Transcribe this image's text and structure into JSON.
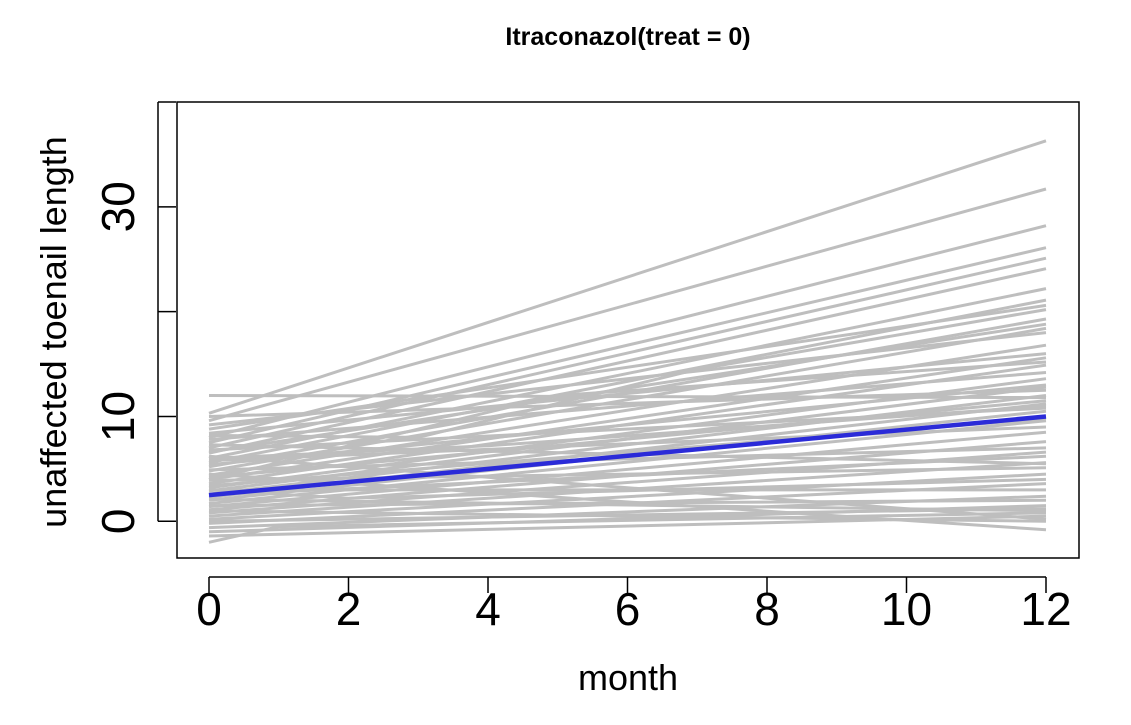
{
  "chart_data": {
    "type": "line",
    "title": "Itraconazol(treat = 0)",
    "xlabel": "month",
    "ylabel": "unaffected toenail length",
    "xlim": [
      0,
      12
    ],
    "ylim": [
      -3.5,
      40
    ],
    "x_ticks": [
      0,
      2,
      4,
      6,
      8,
      10,
      12
    ],
    "y_ticks": [
      0,
      10,
      20,
      30,
      40
    ],
    "y_tick_labels": [
      "0",
      "10",
      "",
      "30",
      ""
    ],
    "x_tick_labels": [
      "0",
      "2",
      "4",
      "6",
      "8",
      "10",
      "12"
    ],
    "colors": {
      "individual": "#bebebe",
      "mean": "#2b2bd8",
      "axis": "#000000"
    },
    "individual_series": [
      {
        "x": [
          0,
          12
        ],
        "y": [
          12.0,
          11.8
        ]
      },
      {
        "x": [
          0,
          12
        ],
        "y": [
          10.3,
          36.3
        ]
      },
      {
        "x": [
          0,
          12
        ],
        "y": [
          9.6,
          31.7
        ]
      },
      {
        "x": [
          0,
          12
        ],
        "y": [
          8.0,
          28.2
        ]
      },
      {
        "x": [
          0,
          12
        ],
        "y": [
          7.5,
          26.1
        ]
      },
      {
        "x": [
          0,
          12
        ],
        "y": [
          7.0,
          25.1
        ]
      },
      {
        "x": [
          0,
          12
        ],
        "y": [
          6.5,
          24.1
        ]
      },
      {
        "x": [
          0,
          12
        ],
        "y": [
          6.0,
          22.2
        ]
      },
      {
        "x": [
          0,
          12
        ],
        "y": [
          5.6,
          21.1
        ]
      },
      {
        "x": [
          0,
          12
        ],
        "y": [
          8.8,
          20.6
        ]
      },
      {
        "x": [
          0,
          12
        ],
        "y": [
          5.2,
          19.3
        ]
      },
      {
        "x": [
          0,
          12
        ],
        "y": [
          4.8,
          18.4
        ]
      },
      {
        "x": [
          0,
          12
        ],
        "y": [
          9.2,
          18.0
        ]
      },
      {
        "x": [
          0,
          12
        ],
        "y": [
          4.4,
          16.8
        ]
      },
      {
        "x": [
          0,
          12
        ],
        "y": [
          4.0,
          15.6
        ]
      },
      {
        "x": [
          0,
          12
        ],
        "y": [
          3.6,
          14.9
        ]
      },
      {
        "x": [
          0,
          12
        ],
        "y": [
          7.8,
          14.2
        ]
      },
      {
        "x": [
          0,
          12
        ],
        "y": [
          3.2,
          13.6
        ]
      },
      {
        "x": [
          0,
          12
        ],
        "y": [
          2.9,
          12.8
        ]
      },
      {
        "x": [
          0,
          12
        ],
        "y": [
          10.0,
          12.5
        ]
      },
      {
        "x": [
          0,
          12
        ],
        "y": [
          2.6,
          12.0
        ]
      },
      {
        "x": [
          0,
          12
        ],
        "y": [
          2.3,
          11.2
        ]
      },
      {
        "x": [
          0,
          12
        ],
        "y": [
          6.8,
          10.8
        ]
      },
      {
        "x": [
          0,
          12
        ],
        "y": [
          2.0,
          10.5
        ]
      },
      {
        "x": [
          0,
          12
        ],
        "y": [
          1.7,
          9.6
        ]
      },
      {
        "x": [
          0,
          12
        ],
        "y": [
          5.8,
          9.0
        ]
      },
      {
        "x": [
          0,
          12
        ],
        "y": [
          1.4,
          8.5
        ]
      },
      {
        "x": [
          0,
          12
        ],
        "y": [
          1.1,
          7.6
        ]
      },
      {
        "x": [
          0,
          12
        ],
        "y": [
          4.9,
          7.0
        ]
      },
      {
        "x": [
          0,
          12
        ],
        "y": [
          0.8,
          6.6
        ]
      },
      {
        "x": [
          0,
          12
        ],
        "y": [
          0.5,
          5.6
        ]
      },
      {
        "x": [
          0,
          12
        ],
        "y": [
          3.9,
          5.1
        ]
      },
      {
        "x": [
          0,
          12
        ],
        "y": [
          0.2,
          4.5
        ]
      },
      {
        "x": [
          0,
          12
        ],
        "y": [
          -0.2,
          3.6
        ]
      },
      {
        "x": [
          0,
          12
        ],
        "y": [
          3.0,
          3.0
        ]
      },
      {
        "x": [
          0,
          12
        ],
        "y": [
          -0.6,
          2.4
        ]
      },
      {
        "x": [
          0,
          12
        ],
        "y": [
          -1.0,
          1.5
        ]
      },
      {
        "x": [
          0,
          12
        ],
        "y": [
          2.1,
          1.0
        ]
      },
      {
        "x": [
          0,
          12
        ],
        "y": [
          -1.4,
          0.5
        ]
      },
      {
        "x": [
          0,
          12
        ],
        "y": [
          6.2,
          0.2
        ]
      },
      {
        "x": [
          0,
          12
        ],
        "y": [
          1.0,
          0.0
        ]
      },
      {
        "x": [
          0,
          12
        ],
        "y": [
          4.5,
          -0.8
        ]
      },
      {
        "x": [
          0,
          12
        ],
        "y": [
          7.3,
          5.5
        ]
      },
      {
        "x": [
          0,
          12
        ],
        "y": [
          8.4,
          16.0
        ]
      },
      {
        "x": [
          0,
          12
        ],
        "y": [
          5.4,
          13.0
        ]
      },
      {
        "x": [
          0,
          12
        ],
        "y": [
          3.4,
          9.8
        ]
      },
      {
        "x": [
          0,
          12
        ],
        "y": [
          2.5,
          6.2
        ]
      },
      {
        "x": [
          0,
          12
        ],
        "y": [
          1.5,
          2.0
        ]
      },
      {
        "x": [
          0,
          12
        ],
        "y": [
          6.6,
          18.8
        ]
      },
      {
        "x": [
          0,
          12
        ],
        "y": [
          4.2,
          11.5
        ]
      },
      {
        "x": [
          0,
          12
        ],
        "y": [
          0.0,
          1.2
        ]
      },
      {
        "x": [
          0,
          1,
          12
        ],
        "y": [
          -2.0,
          -0.5,
          0.8
        ]
      },
      {
        "x": [
          0,
          4,
          12
        ],
        "y": [
          6.0,
          7.2,
          11.0
        ]
      },
      {
        "x": [
          0,
          3,
          7,
          12
        ],
        "y": [
          8.2,
          8.0,
          14.5,
          20.2
        ]
      },
      {
        "x": [
          0,
          5,
          12
        ],
        "y": [
          4.0,
          12.0,
          15.2
        ]
      },
      {
        "x": [
          0,
          2,
          12
        ],
        "y": [
          3.0,
          2.2,
          4.0
        ]
      }
    ],
    "series": [
      {
        "name": "mean",
        "x": [
          0,
          12
        ],
        "y": [
          2.5,
          10.0
        ]
      }
    ]
  }
}
